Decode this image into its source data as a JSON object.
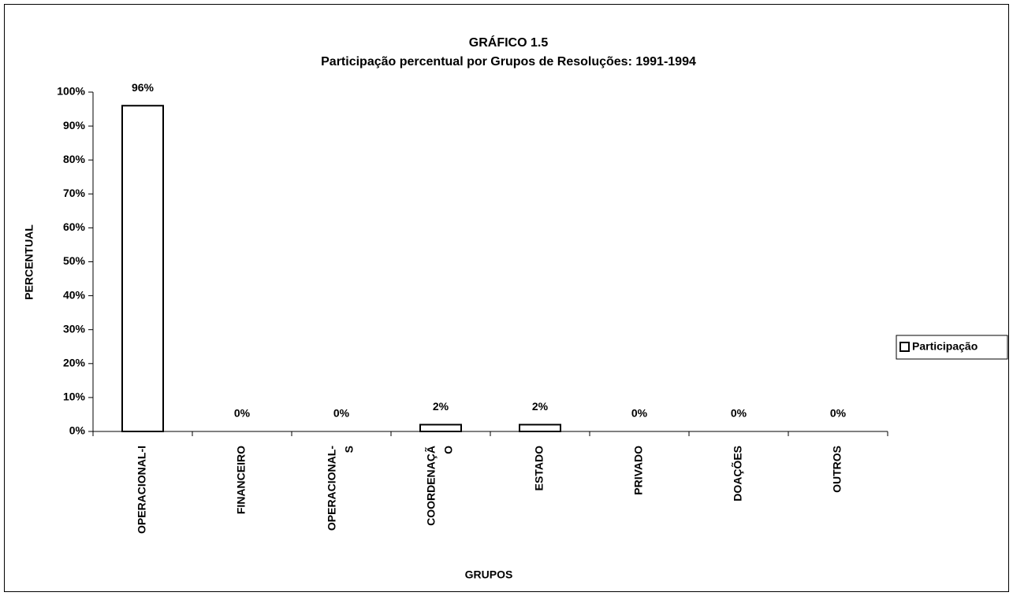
{
  "chart_data": {
    "type": "bar",
    "title": "GRÁFICO 1.5",
    "subtitle": "Participação percentual por Grupos de Resoluções: 1991-1994",
    "y_label": "PERCENTUAL",
    "x_label": "GRUPOS",
    "categories": [
      "OPERACIONAL-I",
      "FINANCEIRO",
      [
        "OPERACIONAL-",
        "S"
      ],
      [
        "COORDENAÇÃ",
        "O"
      ],
      "ESTADO",
      "PRIVADO",
      "DOAÇÕES",
      "OUTROS"
    ],
    "series": [
      {
        "name": "Participação",
        "color": "#ffffff",
        "values": [
          96,
          0,
          0,
          2,
          2,
          0,
          0,
          0
        ],
        "value_labels": [
          "96%",
          "0%",
          "0%",
          "2%",
          "2%",
          "0%",
          "0%",
          "0%"
        ]
      }
    ],
    "ylim": [
      0,
      100
    ],
    "yticks": [
      {
        "value": 0,
        "label": "0%"
      },
      {
        "value": 10,
        "label": "10%"
      },
      {
        "value": 20,
        "label": "20%"
      },
      {
        "value": 30,
        "label": "30%"
      },
      {
        "value": 40,
        "label": "40%"
      },
      {
        "value": 50,
        "label": "50%"
      },
      {
        "value": 60,
        "label": "60%"
      },
      {
        "value": 70,
        "label": "70%"
      },
      {
        "value": 80,
        "label": "80%"
      },
      {
        "value": 90,
        "label": "90%"
      },
      {
        "value": 100,
        "label": "100%"
      }
    ],
    "legend": "right"
  }
}
